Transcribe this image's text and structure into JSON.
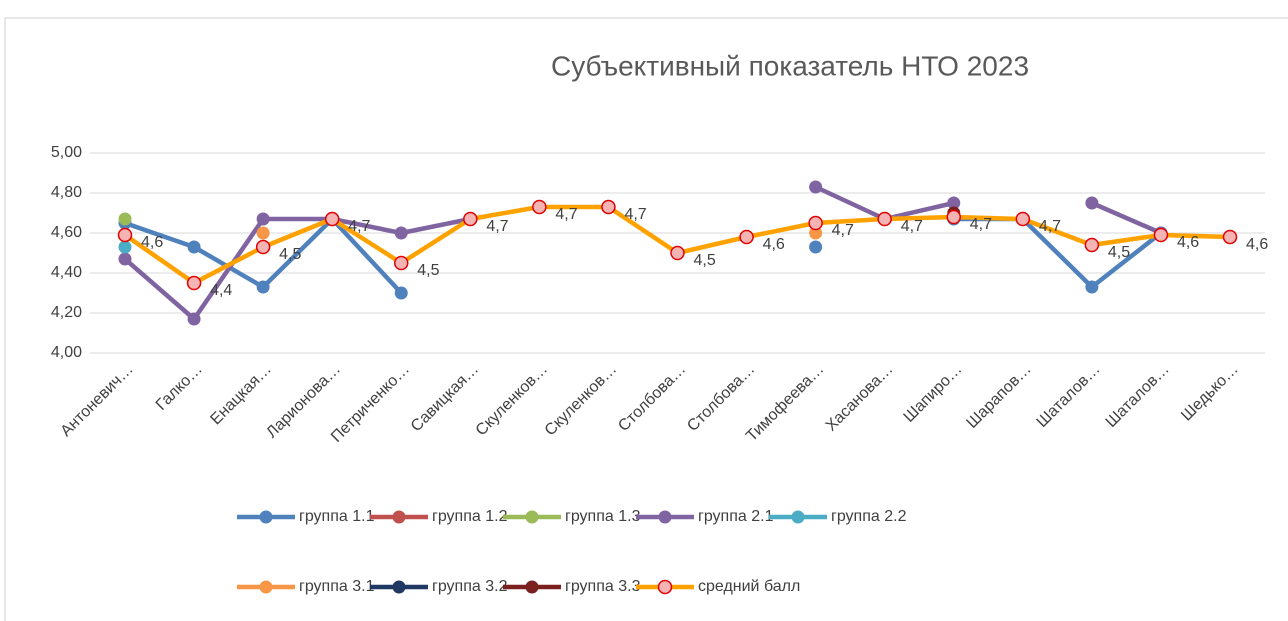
{
  "chart_data": {
    "type": "line",
    "title": "Субъективный показатель НТО 2023",
    "categories": [
      "Антоневич…",
      "Галко…",
      "Енацкая…",
      "Ларионова…",
      "Петриченко…",
      "Савицкая…",
      "Скуленков…",
      "Скуленков…",
      "Столбова…",
      "Столбова…",
      "Тимофеева…",
      "Хасанова…",
      "Шапиро…",
      "Шарапов…",
      "Шаталов…",
      "Шаталов…",
      "Шедько…"
    ],
    "ylim": [
      4.0,
      5.0
    ],
    "yticks": [
      {
        "value": 4.0,
        "label": "4,00"
      },
      {
        "value": 4.2,
        "label": "4,20"
      },
      {
        "value": 4.4,
        "label": "4,40"
      },
      {
        "value": 4.6,
        "label": "4,60"
      },
      {
        "value": 4.8,
        "label": "4,80"
      },
      {
        "value": 5.0,
        "label": "5,00"
      }
    ],
    "grid": true,
    "legend": "bottom",
    "series": [
      {
        "name": "группа 1.1",
        "color": "#4f81bd",
        "values": [
          4.65,
          4.53,
          4.33,
          4.67,
          4.3,
          null,
          null,
          null,
          null,
          null,
          4.53,
          null,
          4.67,
          4.67,
          4.33,
          4.6,
          null
        ]
      },
      {
        "name": "группа 1.2",
        "color": "#c0504d",
        "values": [
          null,
          null,
          null,
          null,
          null,
          null,
          null,
          null,
          null,
          null,
          null,
          null,
          null,
          null,
          null,
          null,
          null
        ]
      },
      {
        "name": "группа 1.3",
        "color": "#9bbb59",
        "values": [
          4.67,
          null,
          null,
          null,
          null,
          null,
          null,
          null,
          null,
          null,
          null,
          null,
          null,
          null,
          null,
          null,
          null
        ]
      },
      {
        "name": "группа 2.1",
        "color": "#8064a2",
        "values": [
          4.47,
          4.17,
          4.67,
          4.67,
          4.6,
          4.67,
          null,
          null,
          null,
          null,
          4.83,
          4.67,
          4.75,
          null,
          4.75,
          4.6,
          null
        ]
      },
      {
        "name": "группа 2.2",
        "color": "#4bacc6",
        "values": [
          4.53,
          null,
          null,
          null,
          null,
          null,
          null,
          null,
          null,
          null,
          null,
          null,
          null,
          null,
          null,
          null,
          null
        ]
      },
      {
        "name": "группа 3.1",
        "color": "#f79646",
        "values": [
          null,
          null,
          4.6,
          null,
          null,
          null,
          null,
          null,
          null,
          null,
          4.6,
          null,
          null,
          null,
          null,
          null,
          null
        ]
      },
      {
        "name": "группа 3.2",
        "color": "#1f3864",
        "values": [
          null,
          null,
          null,
          null,
          null,
          null,
          null,
          null,
          null,
          null,
          null,
          null,
          null,
          null,
          null,
          null,
          null
        ]
      },
      {
        "name": "группа 3.3",
        "color": "#7b1f1f",
        "values": [
          null,
          null,
          null,
          null,
          null,
          null,
          null,
          null,
          null,
          null,
          null,
          null,
          4.7,
          null,
          null,
          null,
          null
        ]
      },
      {
        "name": "средний балл",
        "color": "#ffa200",
        "marker_fill": "#f4b4b4",
        "marker_edge": "#e00000",
        "values": [
          4.59,
          4.35,
          4.53,
          4.67,
          4.45,
          4.67,
          4.73,
          4.73,
          4.5,
          4.58,
          4.65,
          4.67,
          4.68,
          4.67,
          4.54,
          4.59,
          4.58
        ],
        "value_labels": [
          "4,6",
          "4,4",
          "4,5",
          "4,7",
          "4,5",
          "4,7",
          "4,7",
          "4,7",
          "4,5",
          "4,6",
          "4,7",
          "4,7",
          "4,7",
          "4,7",
          "4,5",
          "4,6",
          "4,6"
        ]
      }
    ]
  }
}
